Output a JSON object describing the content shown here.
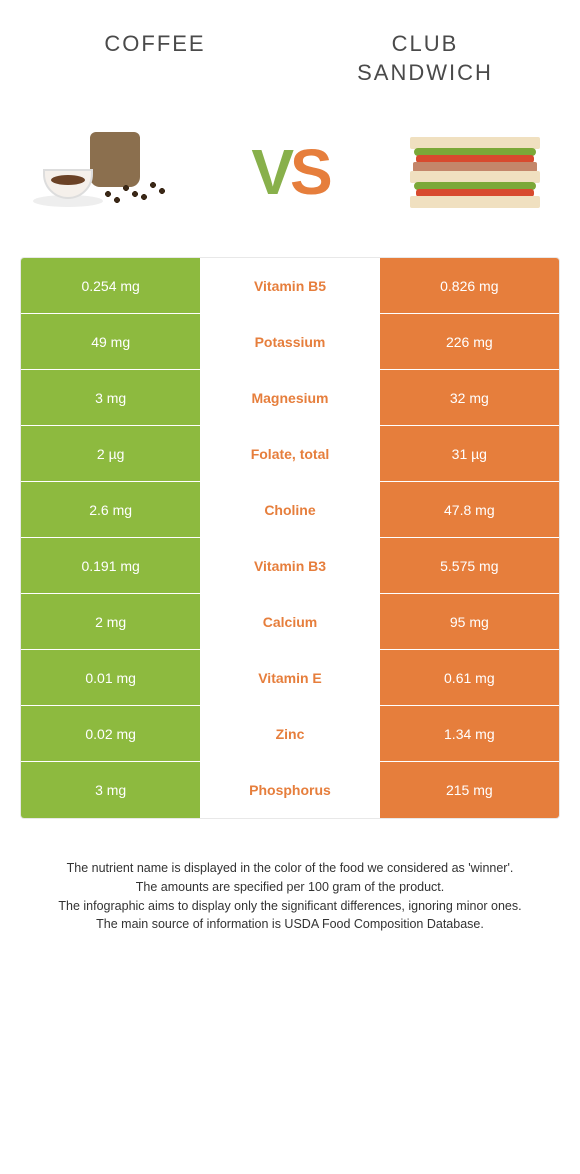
{
  "header": {
    "left": "COFFEE",
    "right_line1": "CLUB",
    "right_line2": "SANDWICH"
  },
  "vs": {
    "v": "V",
    "s": "S"
  },
  "colors": {
    "left_bg": "#8dba3f",
    "right_bg": "#e67e3c",
    "mid_green": "#88b04b",
    "mid_orange": "#e67e3c"
  },
  "rows": [
    {
      "left": "0.254 mg",
      "label": "Vitamin B5",
      "right": "0.826 mg",
      "winner": "right"
    },
    {
      "left": "49 mg",
      "label": "Potassium",
      "right": "226 mg",
      "winner": "right"
    },
    {
      "left": "3 mg",
      "label": "Magnesium",
      "right": "32 mg",
      "winner": "right"
    },
    {
      "left": "2 µg",
      "label": "Folate, total",
      "right": "31 µg",
      "winner": "right"
    },
    {
      "left": "2.6 mg",
      "label": "Choline",
      "right": "47.8 mg",
      "winner": "right"
    },
    {
      "left": "0.191 mg",
      "label": "Vitamin B3",
      "right": "5.575 mg",
      "winner": "right"
    },
    {
      "left": "2 mg",
      "label": "Calcium",
      "right": "95 mg",
      "winner": "right"
    },
    {
      "left": "0.01 mg",
      "label": "Vitamin E",
      "right": "0.61 mg",
      "winner": "right"
    },
    {
      "left": "0.02 mg",
      "label": "Zinc",
      "right": "1.34 mg",
      "winner": "right"
    },
    {
      "left": "3 mg",
      "label": "Phosphorus",
      "right": "215 mg",
      "winner": "right"
    }
  ],
  "footer": {
    "l1": "The nutrient name is displayed in the color of the food we considered as 'winner'.",
    "l2": "The amounts are specified per 100 gram of the product.",
    "l3": "The infographic aims to display only the significant differences, ignoring minor ones.",
    "l4": "The main source of information is USDA Food Composition Database."
  }
}
